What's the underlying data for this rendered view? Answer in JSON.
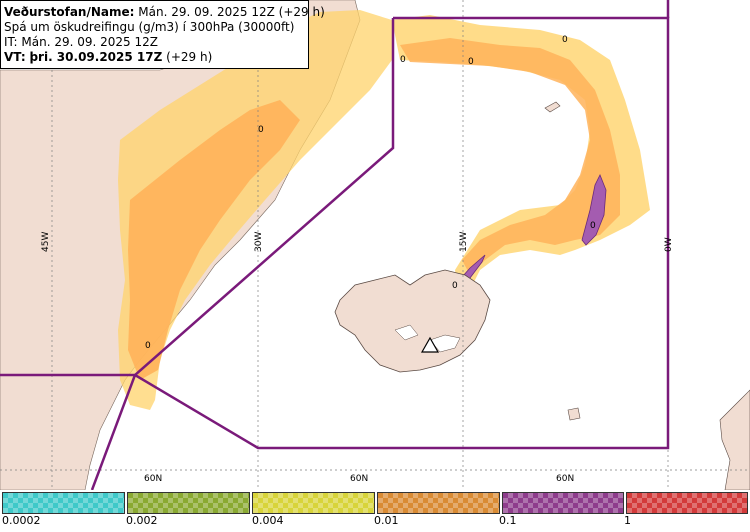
{
  "header": {
    "line1_label": "Veðurstofan/Name:",
    "line1_value": "Mán. 29. 09. 2025 12Z (+29 h)",
    "line2": "Spá um öskudreifingu (g/m3) í 300hPa (30000ft)",
    "line3": "IT: Mán. 29. 09. 2025 12Z",
    "line4_label": "VT:",
    "line4_value": "þri. 30.09.2025 17Z",
    "line4_suffix": "(+29 h)"
  },
  "grid_labels": {
    "lon": [
      "45W",
      "30W",
      "15W",
      "0W"
    ],
    "lat": [
      "60N",
      "60N",
      "60N"
    ]
  },
  "contour_labels": [
    "0",
    "0",
    "0",
    "0",
    "0",
    "0",
    "0"
  ],
  "legend": {
    "ticks": [
      "0.0002",
      "0.002",
      "0.004",
      "0.01",
      "0.1",
      "1"
    ],
    "colors": [
      "#3fc9c9",
      "#8aa932",
      "#d8d43a",
      "#d98b34",
      "#8e3c8c",
      "#d33a3a"
    ]
  },
  "colors": {
    "sector_line": "#7a1a7a",
    "ash_light": "#ffd36b",
    "ash_medium": "#ffb35a",
    "ash_heavy": "#a45cb0",
    "land": "#f1ddd2"
  }
}
